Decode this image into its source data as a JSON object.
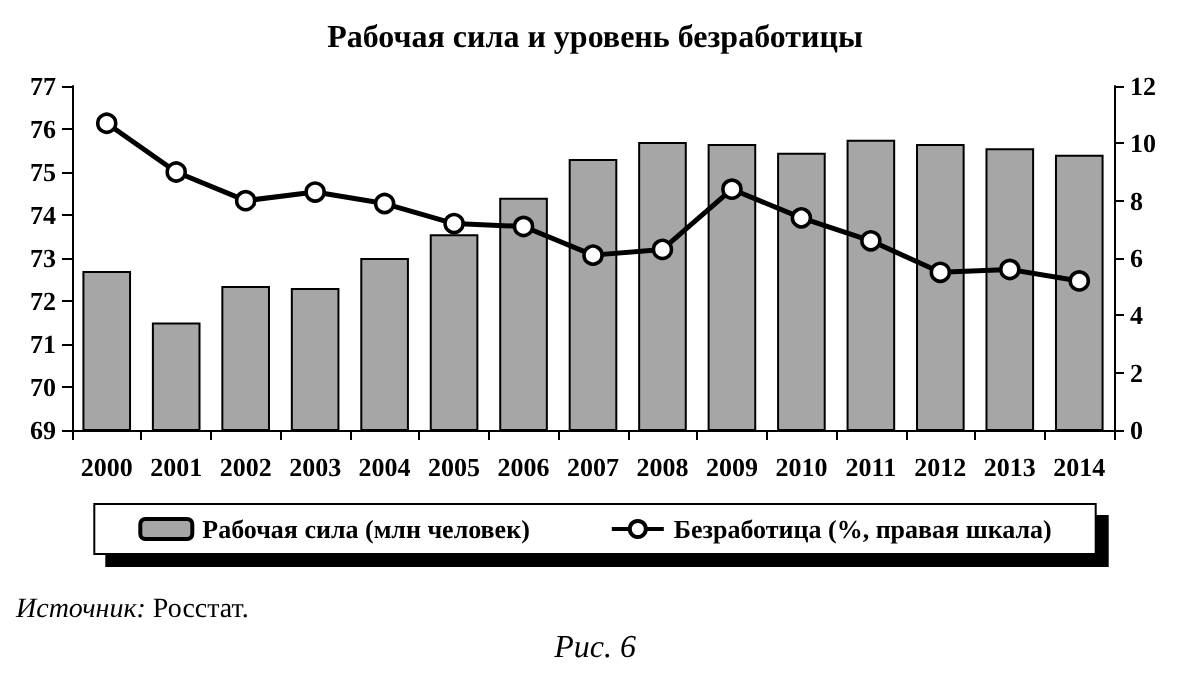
{
  "chart_data": {
    "type": "bar",
    "title": "Рабочая сила и уровень безработицы",
    "categories": [
      "2000",
      "2001",
      "2002",
      "2003",
      "2004",
      "2005",
      "2006",
      "2007",
      "2008",
      "2009",
      "2010",
      "2011",
      "2012",
      "2013",
      "2014"
    ],
    "series": [
      {
        "name": "Рабочая сила (млн человек)",
        "color": "#a6a6a6",
        "values": [
          72.7,
          71.5,
          72.35,
          72.3,
          73.0,
          73.55,
          74.4,
          75.3,
          75.7,
          75.65,
          75.45,
          75.75,
          75.65,
          75.55,
          75.4
        ]
      },
      {
        "name": "Безработица (%, правая шкала)",
        "type": "line",
        "axis": "y2",
        "color": "#000000",
        "values": [
          10.7,
          9.0,
          8.0,
          8.3,
          7.9,
          7.2,
          7.1,
          6.1,
          6.3,
          8.4,
          7.4,
          6.6,
          5.5,
          5.6,
          5.2
        ]
      }
    ],
    "ylim": [
      69,
      77
    ],
    "yticks": [
      69,
      70,
      71,
      72,
      73,
      74,
      75,
      76,
      77
    ],
    "y2lim": [
      0,
      12
    ],
    "y2ticks": [
      0,
      2,
      4,
      6,
      8,
      10,
      12
    ],
    "grid": false,
    "legend": "bottom",
    "marker": "circle",
    "line_style": "solid",
    "annotations": [
      "Источник: Росстат.",
      "Рис. 6"
    ]
  }
}
